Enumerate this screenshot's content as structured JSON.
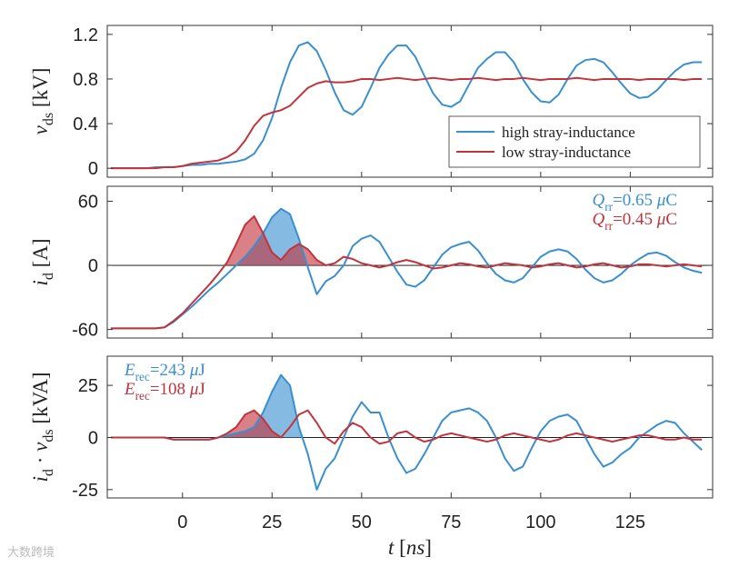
{
  "chart_data": [
    {
      "type": "line",
      "ylabel": [
        {
          "t": "v",
          "s": "i"
        },
        {
          "t": "ds",
          "s": "sub"
        },
        {
          "t": " [kV]"
        }
      ],
      "xlim": [
        -21,
        148
      ],
      "xticks": [
        0,
        25,
        50,
        75,
        100,
        125
      ],
      "ylim": [
        -0.08,
        1.28
      ],
      "yticks": [
        0,
        0.4,
        0.8,
        1.2
      ],
      "legend": "lower right",
      "x": [
        -20,
        -17.5,
        -15,
        -12.5,
        -10,
        -7.5,
        -5,
        -2.5,
        0,
        2.5,
        5,
        7.5,
        10,
        12.5,
        15,
        17.5,
        20,
        22.5,
        25,
        27.5,
        30,
        32.5,
        35,
        37.5,
        40,
        42.5,
        45,
        47.5,
        50,
        52.5,
        55,
        57.5,
        60,
        62.5,
        65,
        67.5,
        70,
        72.5,
        75,
        77.5,
        80,
        82.5,
        85,
        87.5,
        90,
        92.5,
        95,
        97.5,
        100,
        102.5,
        105,
        107.5,
        110,
        112.5,
        115,
        117.5,
        120,
        122.5,
        125,
        127.5,
        130,
        132.5,
        135,
        137.5,
        140,
        142.5,
        145
      ],
      "series": [
        {
          "name": "high stray-inductance",
          "color": "#3a8fd0",
          "values": [
            0,
            0,
            0,
            0,
            0,
            0.01,
            0.01,
            0.01,
            0.02,
            0.03,
            0.03,
            0.04,
            0.04,
            0.05,
            0.06,
            0.08,
            0.13,
            0.25,
            0.45,
            0.72,
            0.95,
            1.1,
            1.13,
            1.05,
            0.88,
            0.68,
            0.52,
            0.48,
            0.55,
            0.72,
            0.9,
            1.02,
            1.1,
            1.1,
            1.0,
            0.83,
            0.67,
            0.57,
            0.55,
            0.6,
            0.75,
            0.9,
            0.98,
            1.04,
            1.04,
            0.95,
            0.8,
            0.68,
            0.6,
            0.59,
            0.66,
            0.8,
            0.92,
            0.97,
            0.98,
            0.95,
            0.86,
            0.76,
            0.67,
            0.63,
            0.64,
            0.7,
            0.79,
            0.87,
            0.93,
            0.95,
            0.95
          ]
        },
        {
          "name": "low stray-inductance",
          "color": "#c2343c",
          "values": [
            0,
            0,
            0,
            0,
            0,
            0,
            0.01,
            0.01,
            0.02,
            0.04,
            0.05,
            0.06,
            0.07,
            0.1,
            0.15,
            0.25,
            0.38,
            0.47,
            0.5,
            0.52,
            0.56,
            0.64,
            0.72,
            0.76,
            0.78,
            0.77,
            0.77,
            0.78,
            0.8,
            0.8,
            0.79,
            0.8,
            0.81,
            0.8,
            0.79,
            0.8,
            0.81,
            0.8,
            0.79,
            0.8,
            0.8,
            0.81,
            0.8,
            0.79,
            0.8,
            0.8,
            0.81,
            0.8,
            0.79,
            0.8,
            0.8,
            0.8,
            0.81,
            0.8,
            0.79,
            0.8,
            0.8,
            0.8,
            0.8,
            0.79,
            0.8,
            0.8,
            0.8,
            0.8,
            0.79,
            0.8,
            0.8
          ]
        }
      ]
    },
    {
      "type": "line",
      "ylabel": [
        {
          "t": "i",
          "s": "i"
        },
        {
          "t": "d",
          "s": "sub"
        },
        {
          "t": " [A]"
        }
      ],
      "xlim": [
        -21,
        148
      ],
      "xticks": [
        0,
        25,
        50,
        75,
        100,
        125
      ],
      "ylim": [
        -68,
        74
      ],
      "yticks": [
        -60,
        0,
        60
      ],
      "zero_line": true,
      "annotations": [
        {
          "color": "#3a8fd0",
          "runs": [
            {
              "t": "Q",
              "s": "i"
            },
            {
              "t": "rr",
              "s": "sub"
            },
            {
              "t": "=0.65 "
            },
            {
              "t": "μ",
              "s": "i"
            },
            {
              "t": "C"
            }
          ]
        },
        {
          "color": "#c2343c",
          "runs": [
            {
              "t": "Q",
              "s": "i"
            },
            {
              "t": "rr",
              "s": "sub"
            },
            {
              "t": "=0.45 "
            },
            {
              "t": "μ",
              "s": "i"
            },
            {
              "t": "C"
            }
          ]
        }
      ],
      "x": [
        -20,
        -17.5,
        -15,
        -12.5,
        -10,
        -7.5,
        -5,
        -2.5,
        0,
        2.5,
        5,
        7.5,
        10,
        12.5,
        15,
        17.5,
        20,
        22.5,
        25,
        27.5,
        30,
        32.5,
        35,
        37.5,
        40,
        42.5,
        45,
        47.5,
        50,
        52.5,
        55,
        57.5,
        60,
        62.5,
        65,
        67.5,
        70,
        72.5,
        75,
        77.5,
        80,
        82.5,
        85,
        87.5,
        90,
        92.5,
        95,
        97.5,
        100,
        102.5,
        105,
        107.5,
        110,
        112.5,
        115,
        117.5,
        120,
        122.5,
        125,
        127.5,
        130,
        132.5,
        135,
        137.5,
        140,
        142.5,
        145
      ],
      "series": [
        {
          "color": "#3a8fd0",
          "shade_peak": true,
          "values": [
            -59,
            -59,
            -59,
            -59,
            -59,
            -59,
            -58,
            -53,
            -46,
            -39,
            -31,
            -23,
            -16,
            -8,
            0,
            8,
            18,
            30,
            45,
            53,
            48,
            25,
            -2,
            -27,
            -15,
            -10,
            0,
            18,
            25,
            28,
            22,
            8,
            -6,
            -18,
            -20,
            -14,
            -2,
            10,
            17,
            20,
            22,
            14,
            2,
            -8,
            -14,
            -16,
            -12,
            -2,
            8,
            13,
            15,
            13,
            6,
            -4,
            -12,
            -16,
            -14,
            -8,
            0,
            6,
            11,
            12,
            9,
            3,
            -2,
            -5,
            -7
          ]
        },
        {
          "color": "#c2343c",
          "shade_peak": true,
          "values": [
            -59,
            -59,
            -59,
            -59,
            -59,
            -59,
            -58,
            -52,
            -45,
            -36,
            -27,
            -18,
            -8,
            3,
            20,
            38,
            46,
            30,
            12,
            5,
            15,
            20,
            15,
            5,
            0,
            2,
            8,
            6,
            2,
            0,
            -2,
            0,
            3,
            5,
            3,
            0,
            -3,
            -2,
            0,
            2,
            1,
            -1,
            -2,
            0,
            2,
            1,
            0,
            -2,
            -1,
            1,
            2,
            0,
            -2,
            -1,
            1,
            2,
            0,
            -2,
            -1,
            1,
            1,
            0,
            -1,
            0,
            1,
            0,
            -1
          ]
        }
      ]
    },
    {
      "type": "line",
      "ylabel": [
        {
          "t": "i",
          "s": "i"
        },
        {
          "t": "d",
          "s": "sub"
        },
        {
          "t": " · "
        },
        {
          "t": "v",
          "s": "i"
        },
        {
          "t": "ds",
          "s": "sub"
        },
        {
          "t": " [kVA]"
        }
      ],
      "xlabel": [
        {
          "t": "t",
          "s": "i"
        },
        {
          "t": " ["
        },
        {
          "t": "ns",
          "s": "i"
        },
        {
          "t": "]"
        }
      ],
      "xlim": [
        -21,
        148
      ],
      "xticks": [
        0,
        25,
        50,
        75,
        100,
        125
      ],
      "ylim": [
        -29,
        39
      ],
      "yticks": [
        -25,
        0,
        25
      ],
      "zero_line": true,
      "annotations": [
        {
          "color": "#3a8fd0",
          "runs": [
            {
              "t": "E",
              "s": "i"
            },
            {
              "t": "rec",
              "s": "sub"
            },
            {
              "t": "=243 "
            },
            {
              "t": "μ",
              "s": "i"
            },
            {
              "t": "J"
            }
          ]
        },
        {
          "color": "#c2343c",
          "runs": [
            {
              "t": "E",
              "s": "i"
            },
            {
              "t": "rec",
              "s": "sub"
            },
            {
              "t": "=108 "
            },
            {
              "t": "μ",
              "s": "i"
            },
            {
              "t": "J"
            }
          ]
        }
      ],
      "x": [
        -20,
        -17.5,
        -15,
        -12.5,
        -10,
        -7.5,
        -5,
        -2.5,
        0,
        2.5,
        5,
        7.5,
        10,
        12.5,
        15,
        17.5,
        20,
        22.5,
        25,
        27.5,
        30,
        32.5,
        35,
        37.5,
        40,
        42.5,
        45,
        47.5,
        50,
        52.5,
        55,
        57.5,
        60,
        62.5,
        65,
        67.5,
        70,
        72.5,
        75,
        77.5,
        80,
        82.5,
        85,
        87.5,
        90,
        92.5,
        95,
        97.5,
        100,
        102.5,
        105,
        107.5,
        110,
        112.5,
        115,
        117.5,
        120,
        122.5,
        125,
        127.5,
        130,
        132.5,
        135,
        137.5,
        140,
        142.5,
        145
      ],
      "series": [
        {
          "color": "#3a8fd0",
          "shade_peak": true,
          "values": [
            0,
            0,
            0,
            0,
            0,
            0,
            0,
            -1,
            -1,
            -1,
            -1,
            -1,
            0,
            1,
            2,
            3,
            5,
            12,
            22,
            30,
            25,
            5,
            -8,
            -25,
            -15,
            -10,
            0,
            10,
            17,
            12,
            12,
            0,
            -10,
            -17,
            -15,
            -8,
            0,
            8,
            12,
            13,
            14,
            12,
            8,
            0,
            -10,
            -16,
            -14,
            -5,
            3,
            8,
            10,
            11,
            8,
            0,
            -8,
            -14,
            -12,
            -8,
            -5,
            0,
            3,
            6,
            8,
            7,
            2,
            -2,
            -6
          ]
        },
        {
          "color": "#c2343c",
          "shade_peak": true,
          "values": [
            0,
            0,
            0,
            0,
            0,
            0,
            0,
            -1,
            -1,
            -1,
            -1,
            -1,
            0,
            2,
            5,
            11,
            13,
            9,
            3,
            0,
            5,
            11,
            13,
            7,
            0,
            -3,
            3,
            7,
            5,
            0,
            -3,
            -2,
            2,
            3,
            0,
            -2,
            -1,
            1,
            2,
            1,
            0,
            -1,
            -2,
            -1,
            1,
            2,
            1,
            0,
            -1,
            -2,
            -1,
            1,
            2,
            1,
            0,
            -1,
            -2,
            -1,
            0,
            1,
            1,
            0,
            -1,
            -1,
            0,
            -1,
            -1
          ]
        }
      ]
    }
  ],
  "watermark": "大数跨境"
}
